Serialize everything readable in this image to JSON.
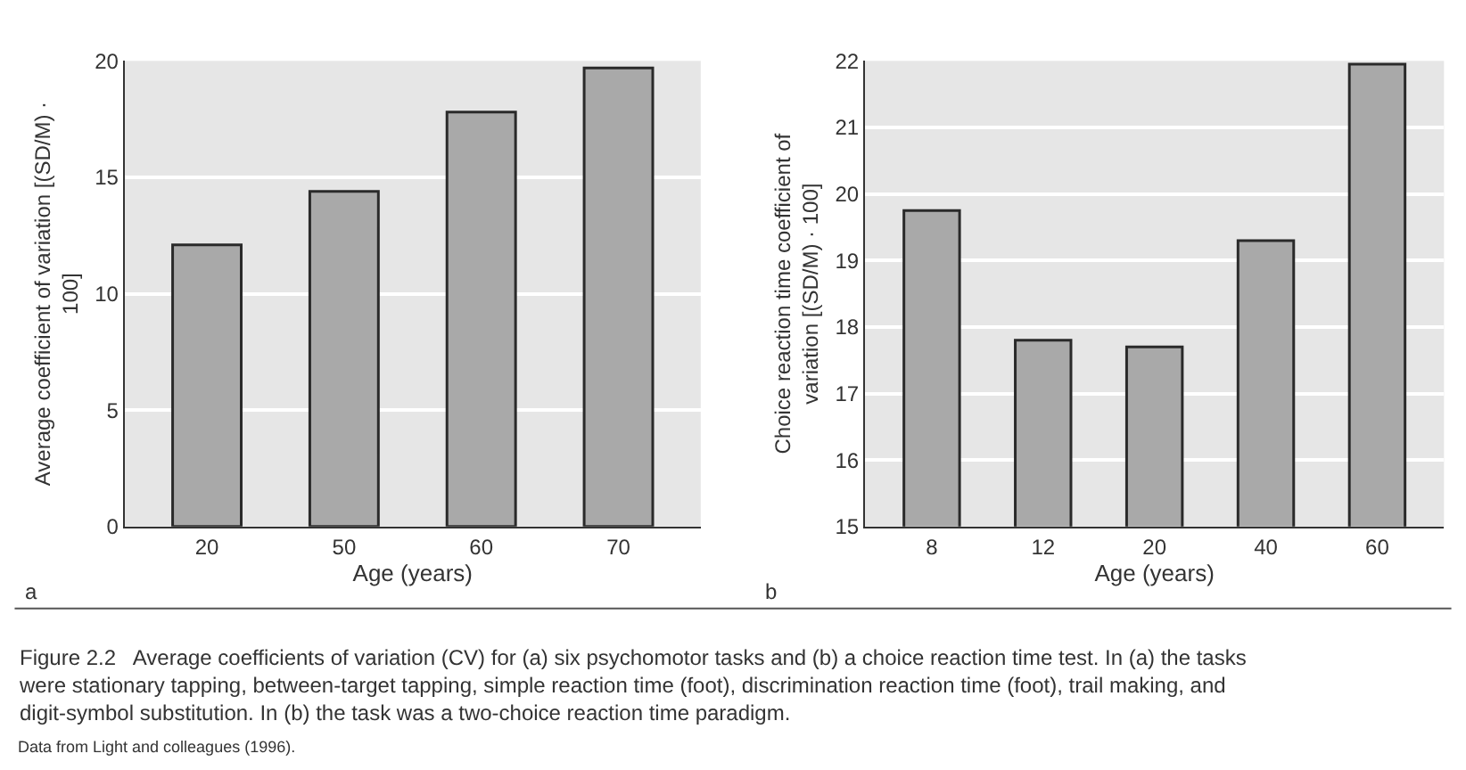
{
  "chart_data": [
    {
      "type": "bar",
      "categories": [
        "20",
        "50",
        "60",
        "70"
      ],
      "values": [
        12.1,
        14.4,
        17.8,
        19.7
      ],
      "color": "#a9a9a9",
      "xlabel": "Age (years)",
      "ylabel": "Average coefficient of variation [(SD/M) · 100]",
      "ylim": [
        0,
        20
      ],
      "yticks": [
        0,
        5,
        10,
        15,
        20
      ],
      "grid": "y",
      "annotations": [
        "a"
      ]
    },
    {
      "type": "bar",
      "categories": [
        "8",
        "12",
        "20",
        "40",
        "60"
      ],
      "values": [
        19.75,
        17.8,
        17.7,
        19.3,
        21.95
      ],
      "color": "#a9a9a9",
      "xlabel": "Age (years)",
      "ylabel": "Choice reaction time coefficient of variation [(SD/M) · 100]",
      "ylim": [
        15,
        22
      ],
      "yticks": [
        15,
        16,
        17,
        18,
        19,
        20,
        21,
        22
      ],
      "grid": "y",
      "annotations": [
        "b",
        "Figure 2.2   Average coefficients of variation (CV) for (a) six psychomotor tasks and (b) a choice reaction time test. In (a) the tasks were stationary tapping, between-target tapping, simple reaction time (foot), discrimination reaction time (foot), trail making, and digit-symbol substitution. In (b) the task was a two-choice reaction time paradigm.",
        "Data from Light and colleagues (1996)."
      ]
    }
  ]
}
